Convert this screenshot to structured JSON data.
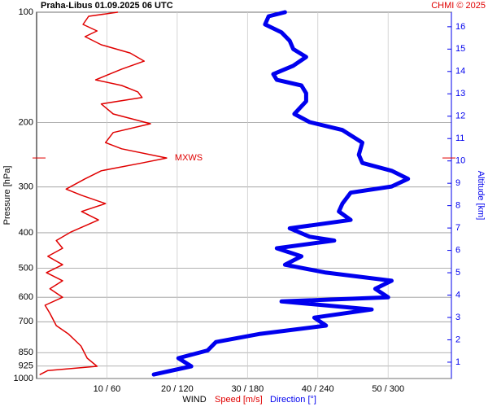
{
  "chart_data": {
    "type": "profile",
    "title": "Praha-Libus    01.09.2025 06 UTC",
    "credit": "CHMI © 2025",
    "ylabel": "Pressure [hPa]",
    "y2label": "Altitude [km]",
    "legend_title": "WIND",
    "log_scale": true,
    "ylim": [
      100,
      1000
    ],
    "yticks": [
      100,
      200,
      300,
      400,
      500,
      600,
      700,
      850,
      925,
      1000
    ],
    "xlim": [
      0,
      59
    ],
    "x2lim": [
      0,
      354
    ],
    "xticks": [
      {
        "value": 10,
        "label": "10 / 60"
      },
      {
        "value": 20,
        "label": "20 / 120"
      },
      {
        "value": 30,
        "label": "30 / 180"
      },
      {
        "value": 40,
        "label": "40 / 240"
      },
      {
        "value": 50,
        "label": "50 / 300"
      }
    ],
    "y2lim": [
      0.27,
      16.65
    ],
    "y2ticks": [
      1,
      2,
      3,
      4,
      5,
      6,
      7,
      8,
      9,
      10,
      11,
      12,
      13,
      14,
      15,
      16
    ],
    "grid": true,
    "annotation": {
      "label": "MXWS",
      "pressure": 250,
      "color": "#e00000"
    },
    "series": [
      {
        "name": "Speed [m/s]",
        "color": "#e00000",
        "pressure": [
          100,
          102.6,
          108,
          112.5,
          116.6,
          122.7,
          129.2,
          136,
          143,
          153,
          158.5,
          165,
          171,
          178,
          189.6,
          201.6,
          213,
          227,
          236,
          250,
          258,
          271,
          285,
          304,
          316,
          333,
          350,
          369,
          398,
          420,
          441,
          464,
          489,
          514,
          541,
          569,
          600,
          631,
          664,
          717,
          755,
          815,
          880,
          926,
          951,
          975
        ],
        "values": [
          11.5,
          7.4,
          6.6,
          8.6,
          6.9,
          9.2,
          13.3,
          15.3,
          12.1,
          8.4,
          12.1,
          14.4,
          15.0,
          9.2,
          10.9,
          16.2,
          10.9,
          9.8,
          12.1,
          18.5,
          15.0,
          9.2,
          6.9,
          4.2,
          6.4,
          9.8,
          6.4,
          8.8,
          4.9,
          2.8,
          3.7,
          1.6,
          3.7,
          1.4,
          3.7,
          1.9,
          3.7,
          1.2,
          1.9,
          2.8,
          4.5,
          6.3,
          7.2,
          8.6,
          1.6,
          0.5
        ]
      },
      {
        "name": "Direction [°]",
        "color": "#0000ee",
        "axis": "x2",
        "pressure": [
          100,
          102.6,
          108,
          113.5,
          119.7,
          126,
          132.5,
          140,
          147.6,
          153,
          158.5,
          166.5,
          175,
          189.6,
          199.5,
          209.7,
          227,
          245,
          258,
          271,
          285,
          299,
          311,
          333,
          350,
          369,
          389,
          410,
          420,
          441,
          464,
          489,
          514,
          541,
          569,
          600,
          616,
          648,
          682,
          717,
          755,
          795,
          838,
          880,
          926,
          975
        ],
        "values": [
          212,
          198,
          195,
          209,
          216,
          219,
          230,
          219,
          202,
          205,
          226,
          230,
          230,
          220,
          233,
          261,
          278,
          275,
          278,
          303,
          317,
          303,
          268,
          261,
          258,
          268,
          216,
          233,
          254,
          205,
          226,
          212,
          247,
          303,
          289,
          300,
          209,
          286,
          237,
          247,
          191,
          153,
          146,
          121,
          132,
          100
        ]
      }
    ]
  }
}
